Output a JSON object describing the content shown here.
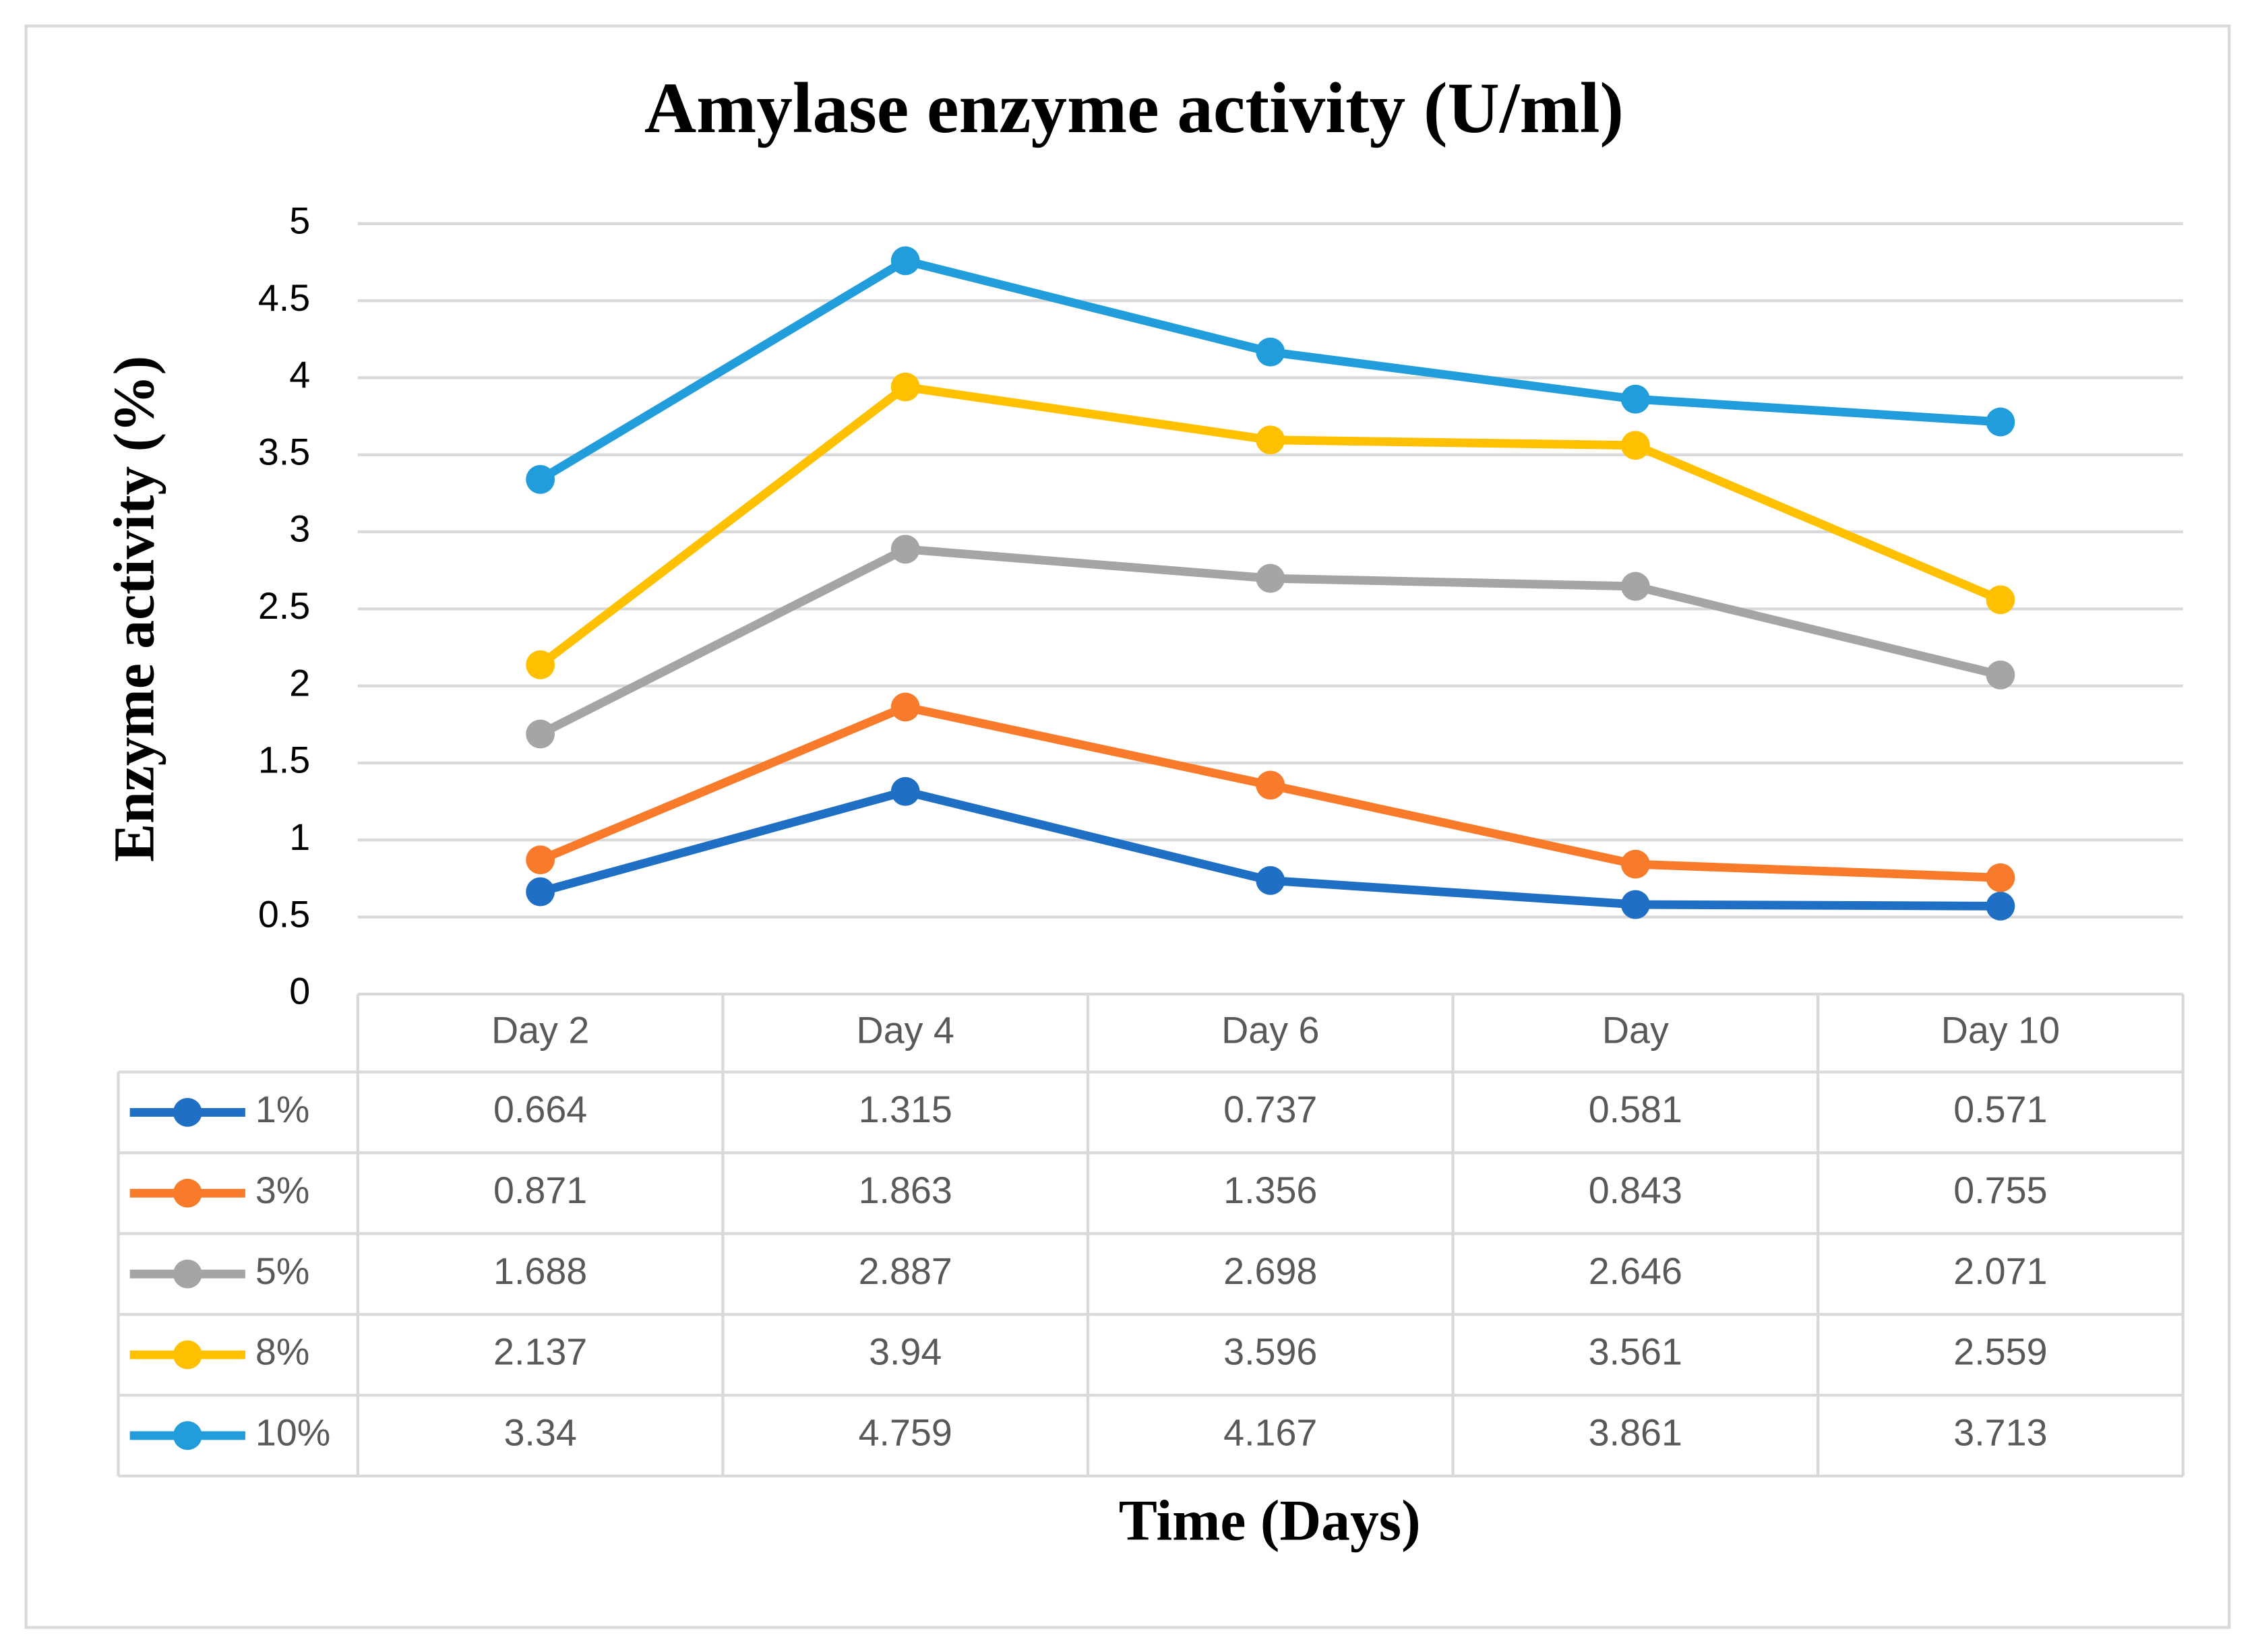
{
  "chart_data": {
    "type": "line",
    "title": "Amylase enzyme activity (U/ml)",
    "y_label": "Enzyme activity (%)",
    "x_label": "Time (Days)",
    "categories": [
      "Day 2",
      "Day 4",
      "Day 6",
      "Day",
      "Day 10"
    ],
    "series": [
      {
        "name": "1%",
        "color": "#1f6fc5",
        "values": [
          0.664,
          1.315,
          0.737,
          0.581,
          0.571
        ]
      },
      {
        "name": "3%",
        "color": "#f77b2a",
        "values": [
          0.871,
          1.863,
          1.356,
          0.843,
          0.755
        ]
      },
      {
        "name": "5%",
        "color": "#a5a5a5",
        "values": [
          1.688,
          2.887,
          2.698,
          2.646,
          2.071
        ]
      },
      {
        "name": "8%",
        "color": "#ffc000",
        "values": [
          2.137,
          3.94,
          3.596,
          3.561,
          2.559
        ]
      },
      {
        "name": "10%",
        "color": "#229ddb",
        "values": [
          3.34,
          4.759,
          4.167,
          3.861,
          3.713
        ]
      }
    ],
    "ylim": [
      0,
      5
    ],
    "yticks": [
      0,
      0.5,
      1,
      1.5,
      2,
      2.5,
      3,
      3.5,
      4,
      4.5,
      5
    ],
    "grid": true,
    "data_table": true
  }
}
